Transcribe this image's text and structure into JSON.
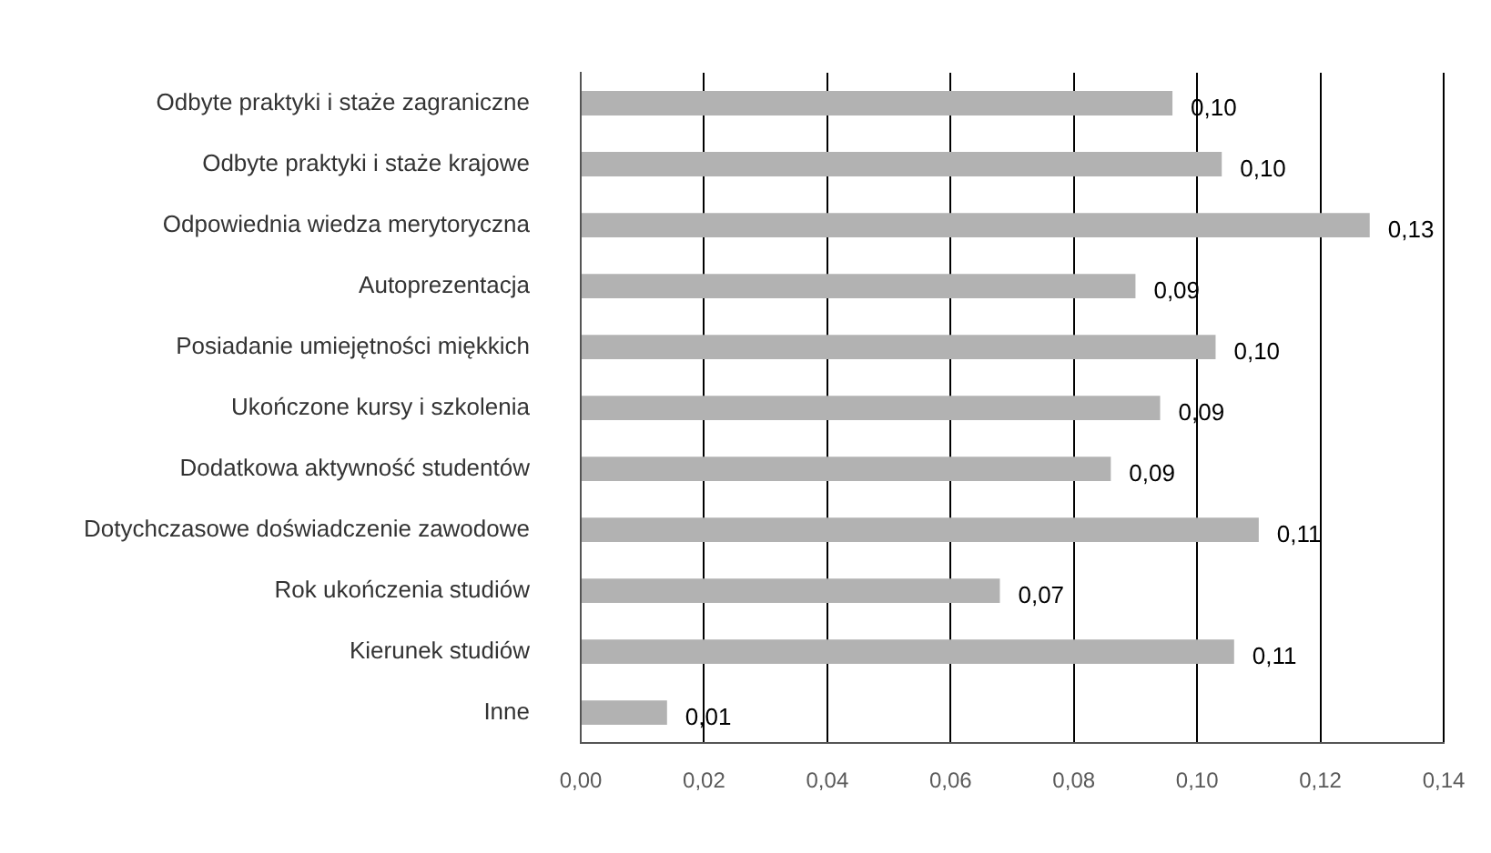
{
  "chart_data": {
    "type": "bar",
    "orientation": "horizontal",
    "categories": [
      "Odbyte praktyki i staże zagraniczne",
      "Odbyte praktyki i staże krajowe",
      "Odpowiednia wiedza merytoryczna",
      "Autoprezentacja",
      "Posiadanie umiejętności miękkich",
      "Ukończone kursy i szkolenia",
      "Dodatkowa aktywność studentów",
      "Dotychczasowe doświadczenie zawodowe",
      "Rok ukończenia studiów",
      "Kierunek studiów",
      "Inne"
    ],
    "values": [
      0.096,
      0.104,
      0.128,
      0.09,
      0.103,
      0.094,
      0.086,
      0.11,
      0.068,
      0.106,
      0.014
    ],
    "value_labels": [
      "0,10",
      "0,10",
      "0,13",
      "0,09",
      "0,10",
      "0,09",
      "0,09",
      "0,11",
      "0,07",
      "0,11",
      "0,01"
    ],
    "color": "#b2b2b2",
    "xlim": [
      0,
      0.14
    ],
    "xticks": [
      {
        "value": 0,
        "label": "0,00"
      },
      {
        "value": 0.02,
        "label": "0,02"
      },
      {
        "value": 0.04,
        "label": "0,04"
      },
      {
        "value": 0.06,
        "label": "0,06"
      },
      {
        "value": 0.08,
        "label": "0,08"
      },
      {
        "value": 0.1,
        "label": "0,10"
      },
      {
        "value": 0.12,
        "label": "0,12"
      },
      {
        "value": 0.14,
        "label": "0,14"
      }
    ],
    "grid": "x",
    "legend": false
  }
}
